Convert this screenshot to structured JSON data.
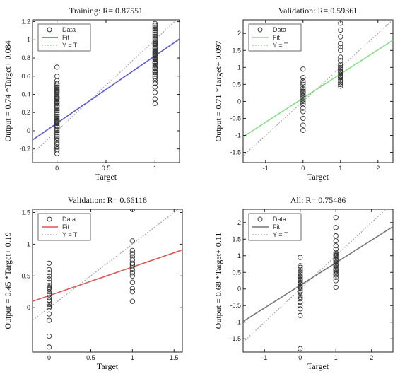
{
  "chart_data": [
    {
      "type": "scatter",
      "title": "Training: R= 0.87551",
      "xlabel": "Target",
      "ylabel": "Output = 0.74 *Target+ 0.084",
      "xlim": [
        -0.25,
        1.25
      ],
      "ylim": [
        -0.35,
        1.22
      ],
      "xticks": [
        0,
        0.5,
        1
      ],
      "xtick_labels": [
        "0",
        "0.5",
        "1"
      ],
      "yticks": [
        -0.2,
        0,
        0.2,
        0.4,
        0.6,
        0.8,
        1,
        1.2
      ],
      "ytick_labels": [
        "-0.2",
        "0",
        "0.2",
        "0.4",
        "0.6",
        "0.8",
        "1",
        "1.2"
      ],
      "fit": {
        "slope": 0.74,
        "intercept": 0.084,
        "color": "#5a5ad6"
      },
      "grid": false,
      "legend_position": "top-left",
      "legend": [
        "Data",
        "Fit",
        "Y = T"
      ],
      "x": [
        0,
        0,
        0,
        0,
        0,
        0,
        0,
        0,
        0,
        0,
        0,
        0,
        0,
        0,
        0,
        0,
        0,
        0,
        0,
        0,
        0,
        0,
        0,
        0,
        0,
        0,
        0,
        0,
        0,
        0,
        0,
        0,
        0,
        0,
        0,
        0,
        0,
        0,
        0,
        0,
        0,
        0,
        0,
        0,
        0,
        0,
        0,
        0,
        0,
        0,
        1,
        1,
        1,
        1,
        1,
        1,
        1,
        1,
        1,
        1,
        1,
        1,
        1,
        1,
        1,
        1,
        1,
        1,
        1,
        1,
        1,
        1,
        1,
        1,
        1,
        1,
        1,
        1,
        1,
        1,
        1,
        1,
        1,
        1,
        1,
        1,
        1,
        1,
        1,
        1,
        1,
        1,
        1,
        1,
        1,
        1,
        1
      ],
      "y": [
        -0.25,
        -0.22,
        -0.2,
        -0.18,
        -0.15,
        -0.13,
        -0.1,
        -0.08,
        -0.06,
        -0.04,
        -0.02,
        0,
        0.02,
        0.04,
        0.06,
        0.08,
        0.1,
        0.12,
        0.14,
        0.16,
        0.18,
        0.2,
        0.22,
        0.24,
        0.26,
        0.28,
        0.3,
        0.32,
        0.34,
        0.36,
        0.38,
        0.4,
        0.42,
        0.44,
        0.46,
        0.48,
        0.5,
        0.52,
        0.55,
        0.7,
        0.6,
        0.09,
        0.27,
        0.35,
        0.45,
        0.05,
        0.11,
        0.31,
        0.37,
        0.43,
        0.3,
        0.35,
        0.42,
        0.48,
        0.52,
        0.55,
        0.58,
        0.6,
        0.62,
        0.64,
        0.66,
        0.68,
        0.7,
        0.72,
        0.74,
        0.76,
        0.78,
        0.8,
        0.82,
        0.84,
        0.86,
        0.88,
        0.9,
        0.92,
        0.94,
        0.96,
        0.98,
        1,
        1.02,
        1.04,
        1.06,
        1.08,
        1.1,
        1.12,
        1.14,
        1.16,
        1.18,
        0.75,
        0.85,
        0.95,
        0.65,
        0.79,
        0.83,
        0.91,
        0.97,
        0.87,
        0.69
      ]
    },
    {
      "type": "scatter",
      "title": "Validation: R= 0.59361",
      "xlabel": "Target",
      "ylabel": "Output = 0.71 *Target+ 0.097",
      "xlim": [
        -1.6,
        2.4
      ],
      "ylim": [
        -1.8,
        2.4
      ],
      "xticks": [
        -1,
        0,
        1,
        2
      ],
      "xtick_labels": [
        "-1",
        "0",
        "1",
        "2"
      ],
      "yticks": [
        -1.5,
        -1,
        -0.5,
        0,
        0.5,
        1,
        1.5,
        2
      ],
      "ytick_labels": [
        "-1.5",
        "-1",
        "-0.5",
        "0",
        "0.5",
        "1",
        "1.5",
        "2"
      ],
      "fit": {
        "slope": 0.71,
        "intercept": 0.097,
        "color": "#88dd88"
      },
      "grid": false,
      "legend_position": "top-left",
      "legend": [
        "Data",
        "Fit",
        "Y = T"
      ],
      "x": [
        0,
        0,
        0,
        0,
        0,
        0,
        0,
        0,
        0,
        0,
        0,
        0,
        0,
        0,
        0,
        0,
        0,
        0,
        0,
        0,
        0,
        0,
        1,
        1,
        1,
        1,
        1,
        1,
        1,
        1,
        1,
        1,
        1,
        1,
        1,
        1,
        1,
        1,
        1,
        1,
        1,
        1,
        1,
        1,
        1,
        1
      ],
      "y": [
        -0.85,
        -0.7,
        -0.5,
        -0.3,
        -0.2,
        -0.1,
        0,
        0.1,
        0.15,
        0.2,
        0.25,
        0.3,
        0.35,
        0.4,
        0.5,
        0.55,
        0.6,
        0.7,
        0.95,
        -0.05,
        0.05,
        0.28,
        0.45,
        0.5,
        0.55,
        0.6,
        0.65,
        0.7,
        0.75,
        0.8,
        0.85,
        0.9,
        0.95,
        1,
        1.05,
        1.1,
        1.2,
        1.3,
        1.5,
        1.7,
        1.9,
        2.1,
        2.3,
        0.72,
        0.88,
        1.6
      ]
    },
    {
      "type": "scatter",
      "title": "Validation: R= 0.66118",
      "xlabel": "Target",
      "ylabel": "Output = 0.45 *Target+ 0.19",
      "xlim": [
        -0.2,
        1.6
      ],
      "ylim": [
        -0.7,
        1.55
      ],
      "xticks": [
        0,
        0.5,
        1,
        1.5
      ],
      "xtick_labels": [
        "0",
        "0.5",
        "1",
        "1.5"
      ],
      "yticks": [
        0,
        0.5,
        1,
        1.5
      ],
      "ytick_labels": [
        "0",
        "0.5",
        "1",
        "1.5"
      ],
      "fit": {
        "slope": 0.45,
        "intercept": 0.19,
        "color": "#e05555"
      },
      "grid": false,
      "legend_position": "top-left",
      "legend": [
        "Data",
        "Fit",
        "Y = T"
      ],
      "x": [
        0,
        0,
        0,
        0,
        0,
        0,
        0,
        0,
        0,
        0,
        0,
        0,
        0,
        0,
        0,
        0,
        0,
        0,
        0,
        0,
        0,
        0,
        1,
        1,
        1,
        1,
        1,
        1,
        1,
        1,
        1,
        1,
        1,
        1,
        1,
        1,
        1,
        1
      ],
      "y": [
        -0.62,
        -0.45,
        -0.2,
        -0.1,
        0,
        0.05,
        0.1,
        0.15,
        0.2,
        0.25,
        0.3,
        0.35,
        0.4,
        0.45,
        0.5,
        0.55,
        0.6,
        0.7,
        0.02,
        0.12,
        0.22,
        0.32,
        0.1,
        0.3,
        0.4,
        0.5,
        0.55,
        0.6,
        0.65,
        0.7,
        0.75,
        0.8,
        0.85,
        0.9,
        1.05,
        1.55,
        0.25,
        0.68
      ]
    },
    {
      "type": "scatter",
      "title": "All: R= 0.75486",
      "xlabel": "Target",
      "ylabel": "Output = 0.68 *Target+ 0.11",
      "xlim": [
        -1.6,
        2.6
      ],
      "ylim": [
        -1.9,
        2.4
      ],
      "xticks": [
        -1,
        0,
        1,
        2
      ],
      "xtick_labels": [
        "-1",
        "0",
        "1",
        "2"
      ],
      "yticks": [
        -1.5,
        -1,
        -0.5,
        0,
        0.5,
        1,
        1.5,
        2
      ],
      "ytick_labels": [
        "-1.5",
        "-1",
        "-0.5",
        "0",
        "0.5",
        "1",
        "1.5",
        "2"
      ],
      "fit": {
        "slope": 0.68,
        "intercept": 0.11,
        "color": "#777777"
      },
      "grid": false,
      "legend_position": "top-left",
      "legend": [
        "Data",
        "Fit",
        "Y = T"
      ],
      "x": [
        0,
        0,
        0,
        0,
        0,
        0,
        0,
        0,
        0,
        0,
        0,
        0,
        0,
        0,
        0,
        0,
        0,
        0,
        0,
        0,
        0,
        0,
        0,
        0,
        0,
        0,
        0,
        0,
        0,
        0,
        1,
        1,
        1,
        1,
        1,
        1,
        1,
        1,
        1,
        1,
        1,
        1,
        1,
        1,
        1,
        1,
        1,
        1,
        1,
        1,
        1,
        1,
        1,
        1,
        1,
        1,
        1,
        1
      ],
      "y": [
        -1.8,
        -0.8,
        -0.6,
        -0.5,
        -0.4,
        -0.3,
        -0.2,
        -0.1,
        0,
        0.05,
        0.1,
        0.15,
        0.2,
        0.25,
        0.3,
        0.35,
        0.4,
        0.45,
        0.5,
        0.55,
        0.6,
        0.65,
        0.7,
        0.95,
        -0.05,
        0.08,
        0.18,
        0.28,
        0.38,
        -0.25,
        0.05,
        0.25,
        0.35,
        0.45,
        0.5,
        0.55,
        0.6,
        0.65,
        0.7,
        0.75,
        0.8,
        0.85,
        0.9,
        0.95,
        1,
        1.05,
        1.1,
        1.2,
        1.3,
        1.45,
        1.6,
        1.85,
        2.15,
        0.42,
        0.58,
        0.72,
        0.88,
        1.02
      ]
    }
  ]
}
